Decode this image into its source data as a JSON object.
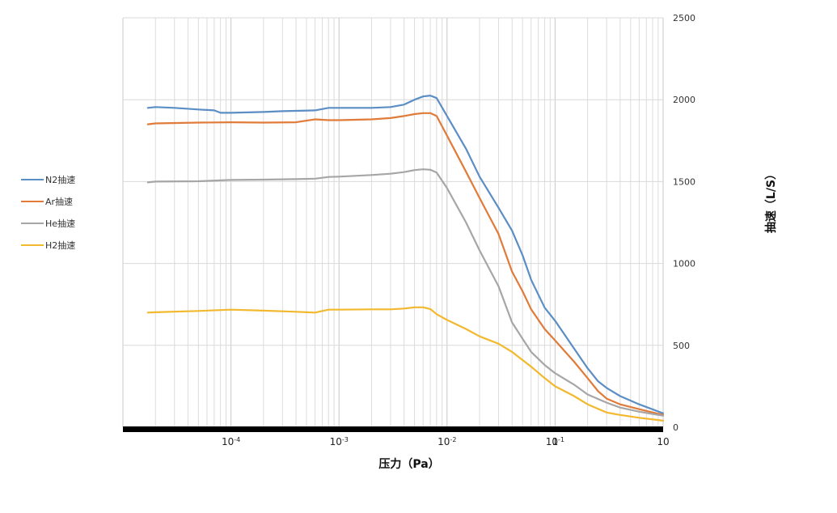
{
  "chart_data": {
    "type": "line",
    "title": "",
    "xlabel": "压力（Pa）",
    "ylabel": "抽速（L/S）",
    "x_scale": "log",
    "xlim": [
      0.0001,
      10
    ],
    "ylim": [
      0,
      2500
    ],
    "y_axis_side": "right",
    "grid": true,
    "legend_position": "left",
    "x_ticks": [
      {
        "base": "10",
        "exp": "-4"
      },
      {
        "base": "10",
        "exp": "-3"
      },
      {
        "base": "10",
        "exp": "-2"
      },
      {
        "base": "10",
        "exp": "-1"
      },
      {
        "base": "1",
        "exp": ""
      },
      {
        "base": "10",
        "exp": ""
      }
    ],
    "y_ticks": [
      "0",
      "500",
      "1000",
      "1500",
      "2000",
      "2500"
    ],
    "series": [
      {
        "name": "N2抽速",
        "color": "#5b8ec4",
        "points": [
          [
            0.00017,
            1950
          ],
          [
            0.0002,
            1955
          ],
          [
            0.0003,
            1950
          ],
          [
            0.0005,
            1940
          ],
          [
            0.0007,
            1935
          ],
          [
            0.0008,
            1920
          ],
          [
            0.001,
            1920
          ],
          [
            0.002,
            1925
          ],
          [
            0.003,
            1930
          ],
          [
            0.006,
            1935
          ],
          [
            0.008,
            1950
          ],
          [
            0.01,
            1950
          ],
          [
            0.02,
            1950
          ],
          [
            0.03,
            1955
          ],
          [
            0.04,
            1970
          ],
          [
            0.05,
            2000
          ],
          [
            0.06,
            2020
          ],
          [
            0.07,
            2025
          ],
          [
            0.08,
            2010
          ],
          [
            0.1,
            1900
          ],
          [
            0.15,
            1700
          ],
          [
            0.2,
            1530
          ],
          [
            0.3,
            1340
          ],
          [
            0.4,
            1200
          ],
          [
            0.5,
            1050
          ],
          [
            0.6,
            900
          ],
          [
            0.8,
            730
          ],
          [
            1,
            650
          ],
          [
            1.5,
            480
          ],
          [
            2,
            360
          ],
          [
            2.5,
            280
          ],
          [
            3,
            240
          ],
          [
            4,
            190
          ],
          [
            6,
            140
          ],
          [
            10,
            85
          ]
        ]
      },
      {
        "name": "Ar抽速",
        "color": "#e07b39",
        "points": [
          [
            0.00017,
            1850
          ],
          [
            0.0002,
            1855
          ],
          [
            0.0005,
            1860
          ],
          [
            0.001,
            1862
          ],
          [
            0.002,
            1860
          ],
          [
            0.004,
            1862
          ],
          [
            0.006,
            1880
          ],
          [
            0.008,
            1875
          ],
          [
            0.01,
            1875
          ],
          [
            0.02,
            1880
          ],
          [
            0.03,
            1888
          ],
          [
            0.04,
            1900
          ],
          [
            0.05,
            1912
          ],
          [
            0.06,
            1918
          ],
          [
            0.07,
            1918
          ],
          [
            0.08,
            1900
          ],
          [
            0.1,
            1780
          ],
          [
            0.15,
            1560
          ],
          [
            0.2,
            1400
          ],
          [
            0.3,
            1180
          ],
          [
            0.4,
            950
          ],
          [
            0.5,
            830
          ],
          [
            0.6,
            720
          ],
          [
            0.8,
            600
          ],
          [
            1,
            530
          ],
          [
            1.5,
            400
          ],
          [
            2,
            300
          ],
          [
            2.5,
            220
          ],
          [
            3,
            175
          ],
          [
            4,
            140
          ],
          [
            6,
            110
          ],
          [
            10,
            75
          ]
        ]
      },
      {
        "name": "He抽速",
        "color": "#a6a6a6",
        "points": [
          [
            0.00017,
            1495
          ],
          [
            0.0002,
            1500
          ],
          [
            0.0005,
            1502
          ],
          [
            0.001,
            1510
          ],
          [
            0.002,
            1512
          ],
          [
            0.004,
            1515
          ],
          [
            0.006,
            1518
          ],
          [
            0.008,
            1528
          ],
          [
            0.01,
            1530
          ],
          [
            0.02,
            1540
          ],
          [
            0.03,
            1548
          ],
          [
            0.04,
            1558
          ],
          [
            0.05,
            1570
          ],
          [
            0.06,
            1575
          ],
          [
            0.07,
            1572
          ],
          [
            0.08,
            1555
          ],
          [
            0.1,
            1460
          ],
          [
            0.15,
            1250
          ],
          [
            0.2,
            1080
          ],
          [
            0.3,
            860
          ],
          [
            0.4,
            640
          ],
          [
            0.5,
            540
          ],
          [
            0.6,
            460
          ],
          [
            0.8,
            380
          ],
          [
            1,
            330
          ],
          [
            1.5,
            260
          ],
          [
            2,
            200
          ],
          [
            3,
            150
          ],
          [
            4,
            120
          ],
          [
            6,
            95
          ],
          [
            10,
            70
          ]
        ]
      },
      {
        "name": "H2抽速",
        "color": "#f2b82e",
        "points": [
          [
            0.00017,
            700
          ],
          [
            0.0002,
            702
          ],
          [
            0.0005,
            710
          ],
          [
            0.001,
            718
          ],
          [
            0.002,
            712
          ],
          [
            0.004,
            705
          ],
          [
            0.006,
            700
          ],
          [
            0.008,
            718
          ],
          [
            0.01,
            718
          ],
          [
            0.02,
            720
          ],
          [
            0.03,
            720
          ],
          [
            0.04,
            725
          ],
          [
            0.05,
            732
          ],
          [
            0.06,
            732
          ],
          [
            0.07,
            722
          ],
          [
            0.08,
            690
          ],
          [
            0.1,
            655
          ],
          [
            0.15,
            600
          ],
          [
            0.2,
            555
          ],
          [
            0.3,
            510
          ],
          [
            0.4,
            460
          ],
          [
            0.5,
            410
          ],
          [
            0.6,
            370
          ],
          [
            0.8,
            300
          ],
          [
            1,
            250
          ],
          [
            1.5,
            190
          ],
          [
            2,
            140
          ],
          [
            3,
            90
          ],
          [
            4,
            75
          ],
          [
            6,
            58
          ],
          [
            10,
            40
          ]
        ]
      }
    ]
  }
}
